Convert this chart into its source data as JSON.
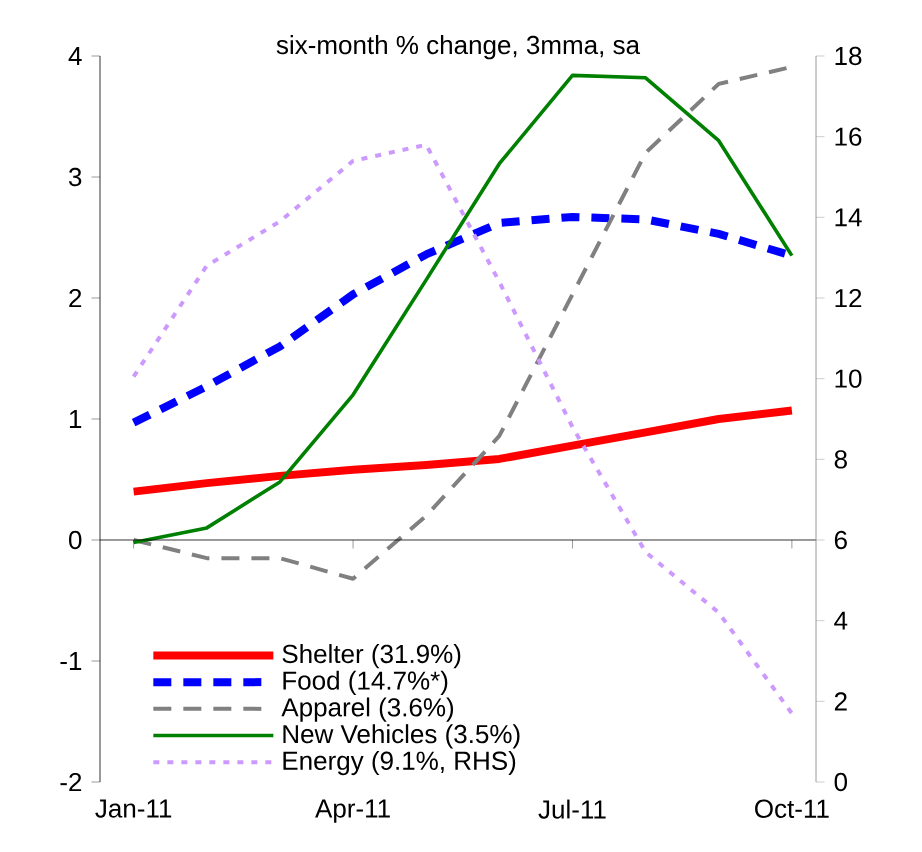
{
  "chart_data": {
    "type": "line",
    "title": "six-month % change, 3mma, sa",
    "categories": [
      "Jan-11",
      null,
      null,
      "Apr-11",
      null,
      null,
      "Jul-11",
      null,
      null,
      "Oct-11"
    ],
    "series": [
      {
        "name": "Shelter (31.9%)",
        "color": "#ff0000",
        "line_style": "solid",
        "values": [
          0.4,
          0.47,
          0.53,
          0.58,
          0.62,
          0.67,
          0.78,
          0.89,
          1.0,
          1.07
        ]
      },
      {
        "name": "Food (14.7%*)",
        "color": "#0000ff",
        "line_style": "dashed",
        "values": [
          0.97,
          1.27,
          1.6,
          2.03,
          2.36,
          2.62,
          2.67,
          2.65,
          2.53,
          2.35
        ]
      },
      {
        "name": "Apparel (3.6%)",
        "color": "#808080",
        "line_style": "dashed",
        "values": [
          0.0,
          -0.15,
          -0.15,
          -0.32,
          0.2,
          0.86,
          2.03,
          3.2,
          3.77,
          3.91
        ]
      },
      {
        "name": "New Vehicles (3.5%)",
        "color": "#008000",
        "line_style": "solid",
        "values": [
          -0.02,
          0.1,
          0.48,
          1.2,
          2.15,
          3.11,
          3.84,
          3.82,
          3.3,
          2.35
        ]
      },
      {
        "name": "Energy (9.1%, RHS)",
        "color": "#cc99ff",
        "line_style": "dotted",
        "axis": "y2",
        "values": [
          10.05,
          12.8,
          13.9,
          15.4,
          15.8,
          12.4,
          8.8,
          5.7,
          4.2,
          1.7
        ]
      }
    ],
    "ylim": [
      -2,
      4
    ],
    "yticks": [
      -2,
      -1,
      0,
      1,
      2,
      3,
      4
    ],
    "y2lim": [
      0,
      18
    ],
    "y2ticks": [
      0,
      2,
      4,
      6,
      8,
      10,
      12,
      14,
      16,
      18
    ],
    "legend": "bottom left",
    "marker": "none"
  }
}
